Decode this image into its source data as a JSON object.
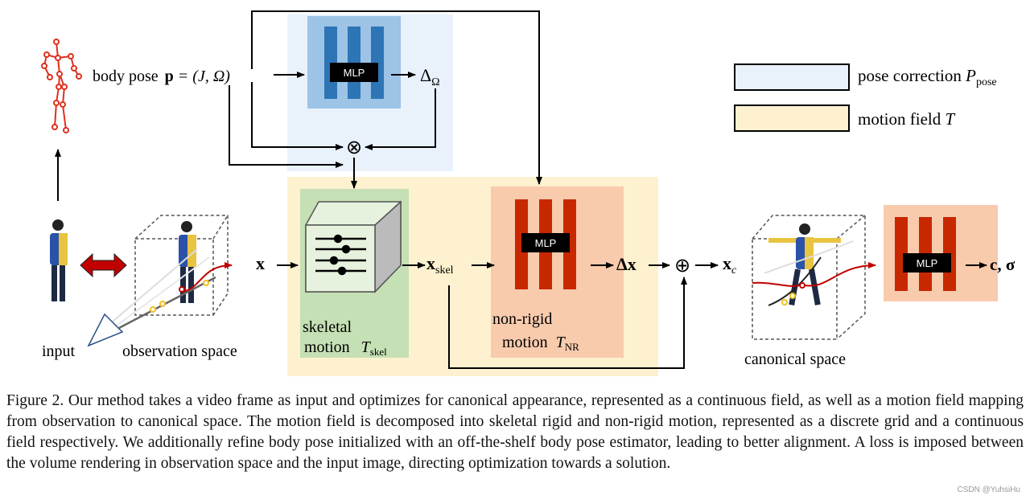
{
  "labels": {
    "body_pose": "body pose",
    "pose_formula_p": "p",
    "pose_formula_rest": " = (J, Ω)",
    "delta_omega": "Δ",
    "delta_omega_sub": "Ω",
    "mlp": "MLP",
    "input": "input",
    "observation_space": "observation space",
    "x": "x",
    "x_skel": "x",
    "x_skel_sub": "skel",
    "skeletal_motion_1": "skeletal",
    "skeletal_motion_2": "motion",
    "t_skel": "T",
    "t_skel_sub": "skel",
    "non_rigid_1": "non-rigid",
    "non_rigid_2": "motion",
    "t_nr": "T",
    "t_nr_sub": "NR",
    "delta_x": "Δx",
    "x_c": "x",
    "x_c_sub": "c",
    "canonical_space": "canonical space",
    "output": "c, σ",
    "otimes": "⊗",
    "oplus": "⊕"
  },
  "legend": [
    {
      "label": "pose correction ",
      "symbol": "P",
      "sub": "pose",
      "color": "#e9f1fa"
    },
    {
      "label": "motion field ",
      "symbol": "T",
      "sub": "",
      "color": "#fdf1cf"
    }
  ],
  "colors": {
    "pose_box": "#e9f1fa",
    "motion_box": "#fdf1cf",
    "skeletal_box": "#c5e0b4",
    "nonrigid_box": "#f8cbad",
    "mlp_blue_panel": "#9dc3e6",
    "mlp_blue_bar": "#2e75b6",
    "mlp_red_bar": "#c82800",
    "skeleton_red": "#e0301e"
  },
  "caption": "Figure 2. Our method takes a video frame as input and optimizes for canonical appearance, represented as a continuous field, as well as a motion field mapping from observation to canonical space. The motion field is decomposed into skeletal rigid and non-rigid motion, represented as a discrete grid and a continuous field respectively. We additionally refine body pose initialized with an off-the-shelf body pose estimator, leading to better alignment. A loss is imposed between the volume rendering in observation space and the input image, directing optimization towards a solution.",
  "watermark": "CSDN @YuhsiHu"
}
